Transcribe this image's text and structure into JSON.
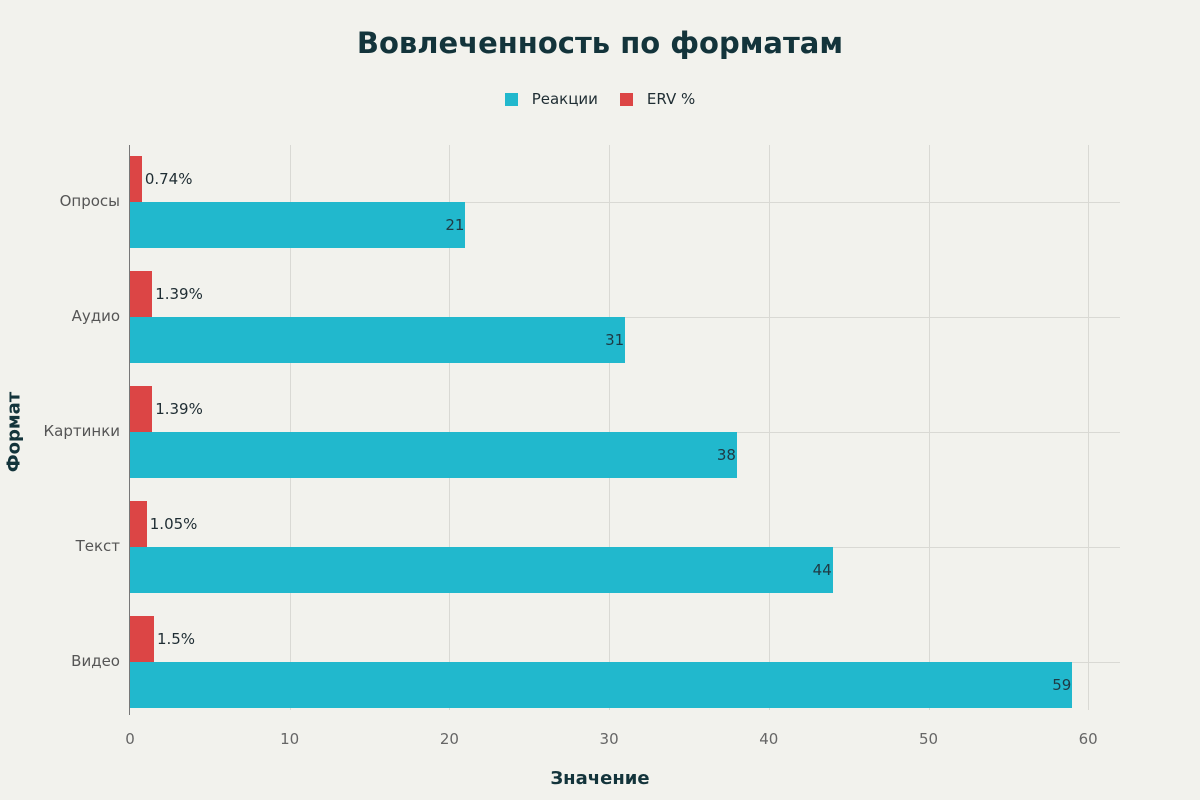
{
  "chart_data": {
    "type": "bar",
    "orientation": "horizontal",
    "title": "Вовлеченность по форматам",
    "xlabel": "Значение",
    "ylabel": "Формат",
    "categories": [
      "Опросы",
      "Аудио",
      "Картинки",
      "Текст",
      "Видео"
    ],
    "series": [
      {
        "name": "Реакции",
        "color": "#21b8cd",
        "values": [
          21,
          31,
          38,
          44,
          59
        ],
        "labels": [
          "21",
          "31",
          "38",
          "44",
          "59"
        ]
      },
      {
        "name": "ERV %",
        "color": "#dc4545",
        "values": [
          0.74,
          1.39,
          1.39,
          1.05,
          1.5
        ],
        "labels": [
          "0.74%",
          "1.39%",
          "1.39%",
          "1.05%",
          "1.5%"
        ]
      }
    ],
    "xlim": [
      0,
      62
    ],
    "xticks": [
      "0",
      "10",
      "20",
      "30",
      "40",
      "50",
      "60"
    ],
    "grid": true,
    "legend_position": "top"
  }
}
